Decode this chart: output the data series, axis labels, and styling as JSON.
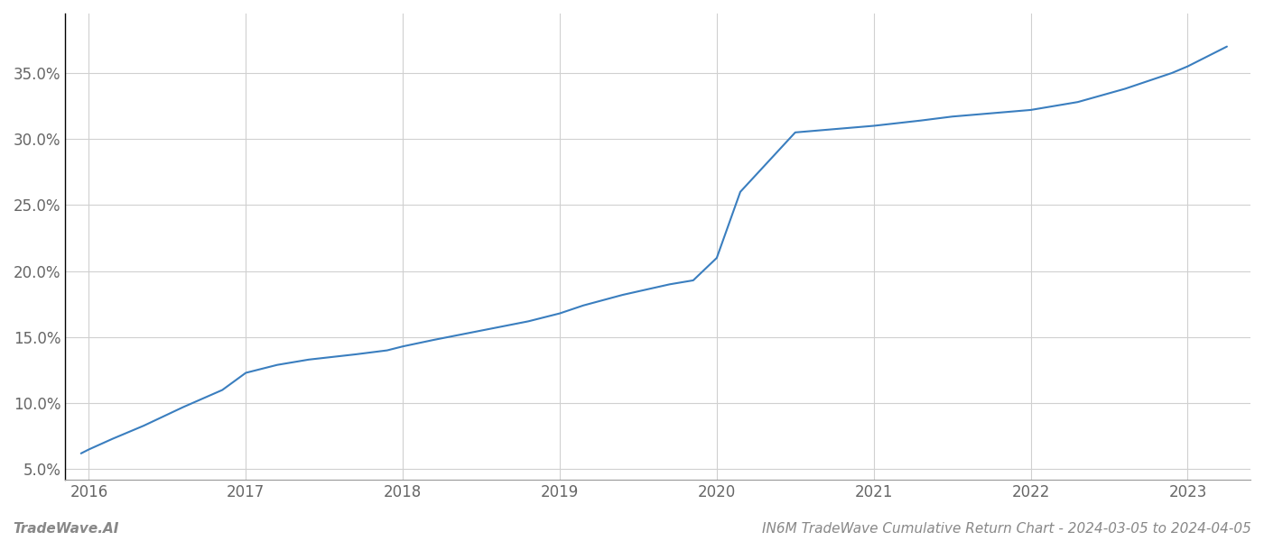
{
  "x_values": [
    2015.95,
    2016.0,
    2016.15,
    2016.35,
    2016.6,
    2016.85,
    2017.0,
    2017.2,
    2017.4,
    2017.7,
    2017.9,
    2018.0,
    2018.2,
    2018.5,
    2018.8,
    2019.0,
    2019.15,
    2019.4,
    2019.7,
    2019.85,
    2020.0,
    2020.15,
    2020.5,
    2020.8,
    2021.0,
    2021.3,
    2021.5,
    2021.8,
    2022.0,
    2022.3,
    2022.6,
    2022.9,
    2023.0,
    2023.25
  ],
  "y_values": [
    0.062,
    0.065,
    0.073,
    0.083,
    0.097,
    0.11,
    0.123,
    0.129,
    0.133,
    0.137,
    0.14,
    0.143,
    0.148,
    0.155,
    0.162,
    0.168,
    0.174,
    0.182,
    0.19,
    0.193,
    0.21,
    0.26,
    0.305,
    0.308,
    0.31,
    0.314,
    0.317,
    0.32,
    0.322,
    0.328,
    0.338,
    0.35,
    0.355,
    0.37
  ],
  "line_color": "#3a7ebf",
  "line_width": 1.5,
  "background_color": "#ffffff",
  "grid_color": "#d0d0d0",
  "yticks": [
    0.05,
    0.1,
    0.15,
    0.2,
    0.25,
    0.3,
    0.35
  ],
  "ytick_labels": [
    "5.0%",
    "10.0%",
    "15.0%",
    "20.0%",
    "25.0%",
    "30.0%",
    "35.0%"
  ],
  "xticks": [
    2016,
    2017,
    2018,
    2019,
    2020,
    2021,
    2022,
    2023
  ],
  "xtick_labels": [
    "2016",
    "2017",
    "2018",
    "2019",
    "2020",
    "2021",
    "2022",
    "2023"
  ],
  "xlim": [
    2015.85,
    2023.4
  ],
  "ylim": [
    0.042,
    0.395
  ],
  "tick_label_color": "#666666",
  "tick_label_fontsize": 12,
  "footer_left": "TradeWave.AI",
  "footer_right": "IN6M TradeWave Cumulative Return Chart - 2024-03-05 to 2024-04-05",
  "footer_fontsize": 11,
  "footer_color": "#888888",
  "left_spine_color": "#000000"
}
